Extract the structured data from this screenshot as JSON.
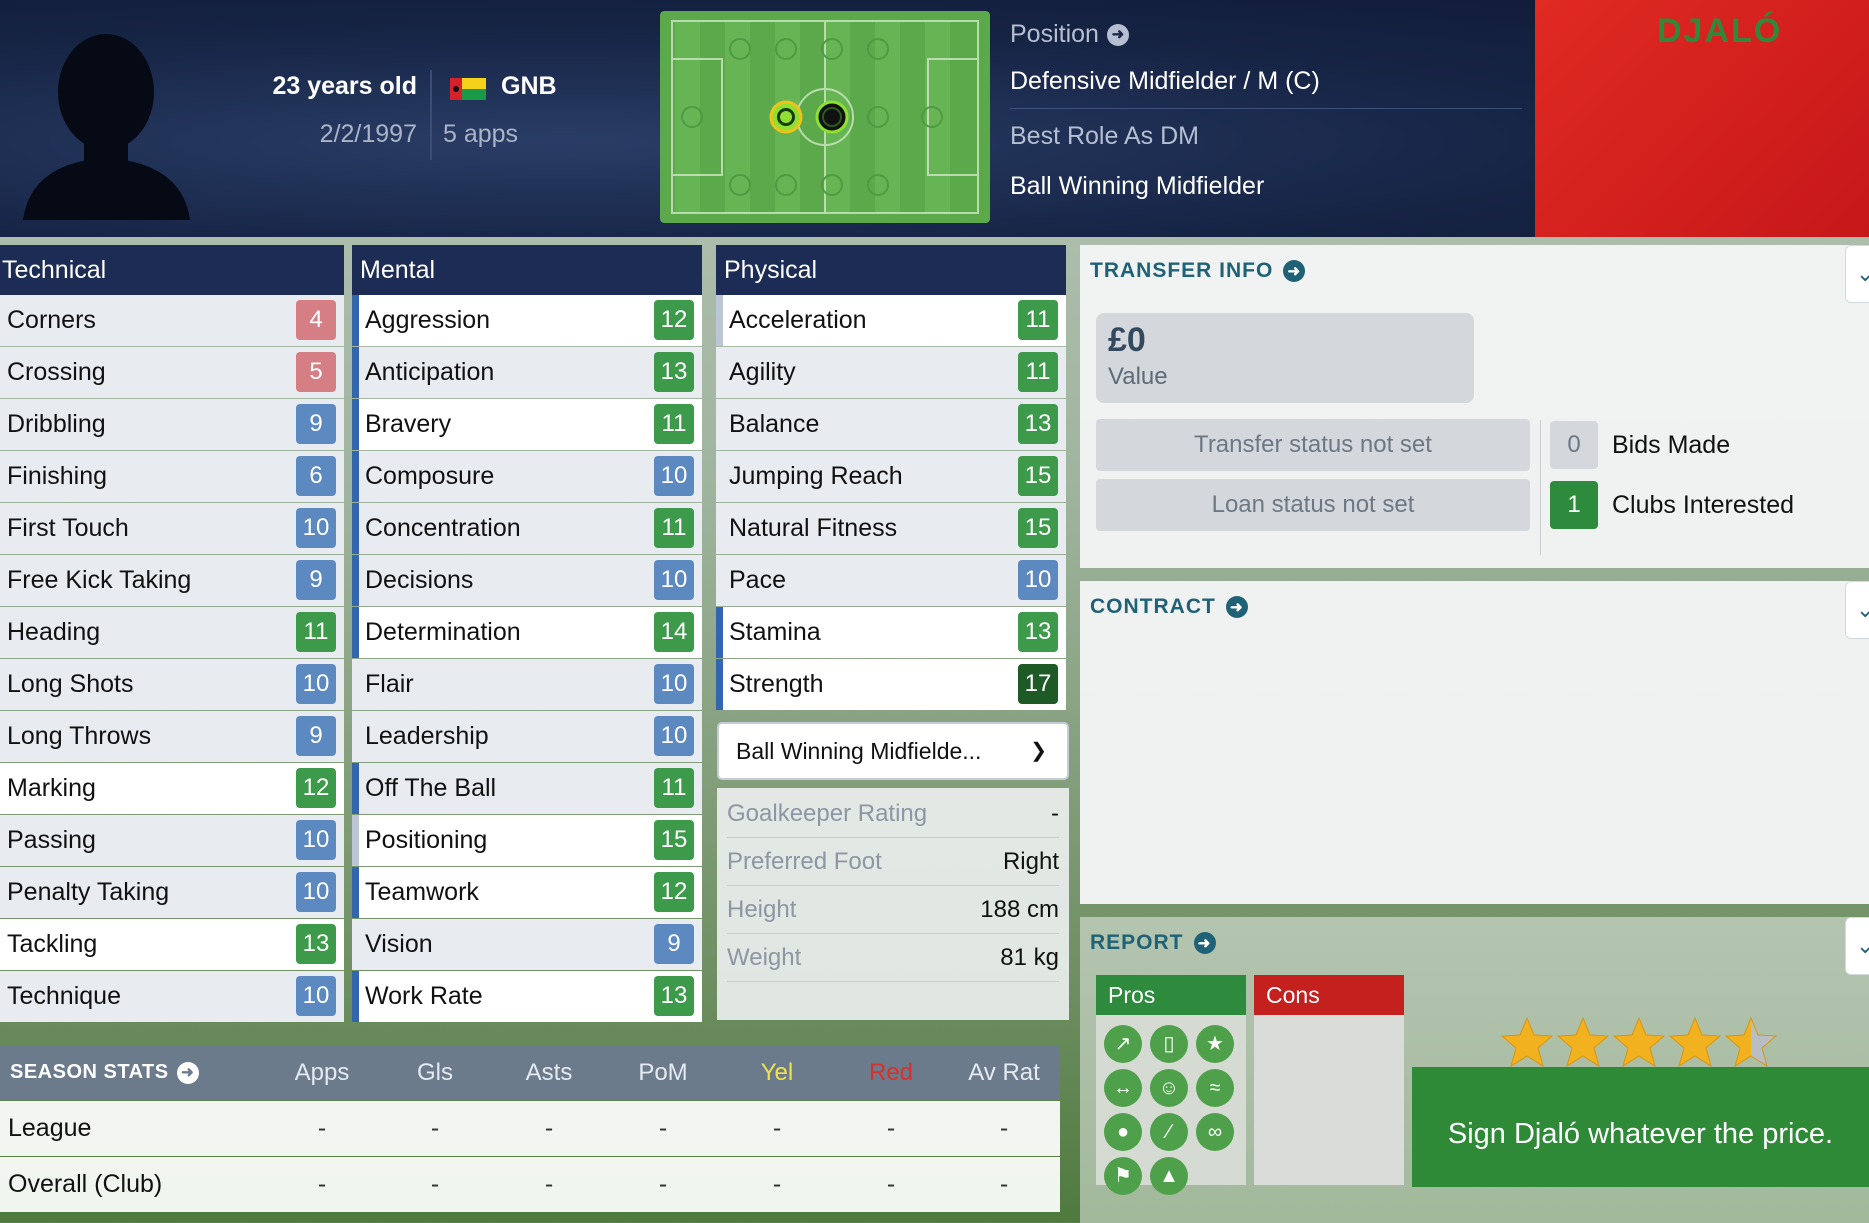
{
  "header": {
    "age": "23 years old",
    "dob": "2/2/1997",
    "nation": "GNB",
    "apps": "5 apps",
    "position_label": "Position",
    "position_value": "Defensive Midfielder / M (C)",
    "best_role_label": "Best Role As DM",
    "best_role_value": "Ball Winning Midfielder",
    "kit_name": "DJALÓ"
  },
  "technical": {
    "title": "Technical",
    "items": [
      {
        "name": "Corners",
        "value": "4"
      },
      {
        "name": "Crossing",
        "value": "5"
      },
      {
        "name": "Dribbling",
        "value": "9"
      },
      {
        "name": "Finishing",
        "value": "6"
      },
      {
        "name": "First Touch",
        "value": "10"
      },
      {
        "name": "Free Kick Taking",
        "value": "9"
      },
      {
        "name": "Heading",
        "value": "11"
      },
      {
        "name": "Long Shots",
        "value": "10"
      },
      {
        "name": "Long Throws",
        "value": "9"
      },
      {
        "name": "Marking",
        "value": "12"
      },
      {
        "name": "Passing",
        "value": "10"
      },
      {
        "name": "Penalty Taking",
        "value": "10"
      },
      {
        "name": "Tackling",
        "value": "13"
      },
      {
        "name": "Technique",
        "value": "10"
      }
    ]
  },
  "mental": {
    "title": "Mental",
    "items": [
      {
        "name": "Aggression",
        "value": "12"
      },
      {
        "name": "Anticipation",
        "value": "13"
      },
      {
        "name": "Bravery",
        "value": "11"
      },
      {
        "name": "Composure",
        "value": "10"
      },
      {
        "name": "Concentration",
        "value": "11"
      },
      {
        "name": "Decisions",
        "value": "10"
      },
      {
        "name": "Determination",
        "value": "14"
      },
      {
        "name": "Flair",
        "value": "10"
      },
      {
        "name": "Leadership",
        "value": "10"
      },
      {
        "name": "Off The Ball",
        "value": "11"
      },
      {
        "name": "Positioning",
        "value": "15"
      },
      {
        "name": "Teamwork",
        "value": "12"
      },
      {
        "name": "Vision",
        "value": "9"
      },
      {
        "name": "Work Rate",
        "value": "13"
      }
    ]
  },
  "physical": {
    "title": "Physical",
    "items": [
      {
        "name": "Acceleration",
        "value": "11"
      },
      {
        "name": "Agility",
        "value": "11"
      },
      {
        "name": "Balance",
        "value": "13"
      },
      {
        "name": "Jumping Reach",
        "value": "15"
      },
      {
        "name": "Natural Fitness",
        "value": "15"
      },
      {
        "name": "Pace",
        "value": "10"
      },
      {
        "name": "Stamina",
        "value": "13"
      },
      {
        "name": "Strength",
        "value": "17"
      }
    ]
  },
  "role_dropdown": {
    "label": "Ball Winning Midfielde..."
  },
  "info": {
    "goalkeeper_rating_label": "Goalkeeper Rating",
    "goalkeeper_rating_value": "-",
    "preferred_foot_label": "Preferred Foot",
    "preferred_foot_value": "Right",
    "height_label": "Height",
    "height_value": "188 cm",
    "weight_label": "Weight",
    "weight_value": "81 kg"
  },
  "season_stats": {
    "title": "SEASON STATS",
    "columns": [
      "Apps",
      "Gls",
      "Asts",
      "PoM",
      "Yel",
      "Red",
      "Av Rat"
    ],
    "rows": [
      {
        "label": "League",
        "values": [
          "-",
          "-",
          "-",
          "-",
          "-",
          "-",
          "-"
        ]
      },
      {
        "label": "Overall (Club)",
        "values": [
          "-",
          "-",
          "-",
          "-",
          "-",
          "-",
          "-"
        ]
      }
    ]
  },
  "transfer": {
    "title": "TRANSFER INFO",
    "value_amount": "£0",
    "value_label": "Value",
    "transfer_status": "Transfer status not set",
    "loan_status": "Loan status not set",
    "bids_count": "0",
    "bids_label": "Bids Made",
    "clubs_count": "1",
    "clubs_label": "Clubs Interested"
  },
  "contract": {
    "title": "CONTRACT"
  },
  "report": {
    "title": "REPORT",
    "pros_label": "Pros",
    "cons_label": "Cons",
    "star_rating": 4.5,
    "summary": "Sign Djaló whatever the price.",
    "pro_icons": [
      "trend-up-icon",
      "kit-icon",
      "star-icon",
      "strength-icon",
      "bravery-icon",
      "tackle-icon",
      "brain-icon",
      "bandage-icon",
      "handshake-icon",
      "flag-icon",
      "cone-icon"
    ]
  },
  "colors": {
    "header_bg": "#162445",
    "attr_header": "#1c2c55",
    "rating_low": "#d57f84",
    "rating_mid": "#5c89c0",
    "rating_high": "#3c9a4a",
    "rating_top": "#1e5a26",
    "accent": "#1f6277",
    "pros": "#2e8b3d",
    "cons": "#c4201e"
  }
}
